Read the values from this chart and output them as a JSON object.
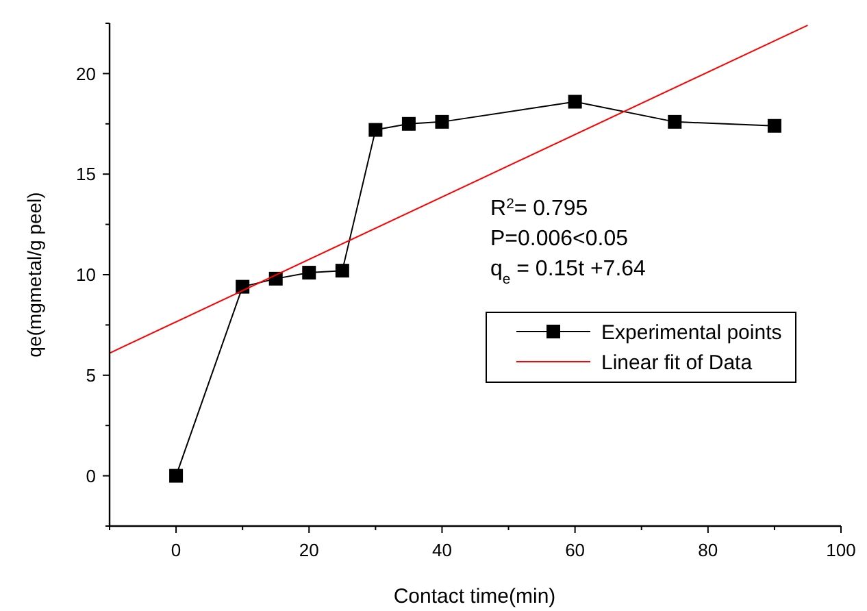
{
  "chart_data": {
    "type": "line",
    "xlabel": "Contact time(min)",
    "ylabel": "qe(mgmetal/g peel)",
    "xlim": [
      -10,
      100
    ],
    "ylim": [
      -2.5,
      22.5
    ],
    "xticks": [
      {
        "value": -10,
        "label": null
      },
      0,
      {
        "value": 10,
        "label": null
      },
      20,
      {
        "value": 30,
        "label": null
      },
      40,
      {
        "value": 50,
        "label": null
      },
      60,
      {
        "value": 70,
        "label": null
      },
      80,
      {
        "value": 90,
        "label": null
      },
      100
    ],
    "yticks": [
      {
        "value": -2.5,
        "label": null
      },
      0,
      {
        "value": 2.5,
        "label": null
      },
      5,
      {
        "value": 7.5,
        "label": null
      },
      10,
      {
        "value": 12.5,
        "label": null
      },
      15,
      {
        "value": 17.5,
        "label": null
      },
      20,
      {
        "value": 22.5,
        "label": null
      }
    ],
    "x": [
      0,
      10,
      15,
      20,
      25,
      30,
      35,
      40,
      60,
      75,
      90
    ],
    "series": [
      {
        "name": "Experimental points",
        "color": "#000000",
        "values": [
          0,
          9.4,
          9.8,
          10.1,
          10.2,
          17.2,
          17.5,
          17.6,
          18.6,
          17.6,
          17.4
        ],
        "marker": "square"
      },
      {
        "name": "Linear fit of Data",
        "color": "#ff0000",
        "x": [
          -10,
          95
        ],
        "values": [
          6.1,
          22.4
        ],
        "marker": "none"
      }
    ],
    "annotations": [
      "R$^{2}$= 0.795",
      "P=0.006<0.05",
      "q$_{e}$ = 0.15t +7.64"
    ],
    "legend": "right",
    "grid": false,
    "line_style": "solid"
  }
}
